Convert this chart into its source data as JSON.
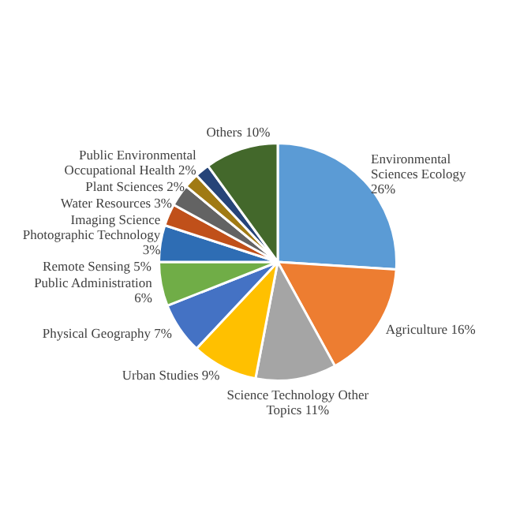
{
  "chart_data": {
    "type": "pie",
    "categories": [
      "Environmental Sciences Ecology",
      "Agriculture",
      "Science Technology Other Topics",
      "Urban Studies",
      "Physical Geography",
      "Public Administration",
      "Remote Sensing",
      "Imaging Science Photographic Technology",
      "Water Resources",
      "Plant Sciences",
      "Public Environmental Occupational Health",
      "Others"
    ],
    "values": [
      26,
      16,
      11,
      9,
      7,
      6,
      5,
      3,
      3,
      2,
      2,
      10
    ],
    "value_labels": [
      "26%",
      "16%",
      "11%",
      "9%",
      "7%",
      "6%",
      "5%",
      "3%",
      "3%",
      "2%",
      "2%",
      "10%"
    ],
    "colors": [
      "#5b9bd5",
      "#ed7d31",
      "#a5a5a5",
      "#ffc000",
      "#4472c4",
      "#70ad47",
      "#2e6db4",
      "#c0501a",
      "#636363",
      "#a07a14",
      "#264478",
      "#43682b"
    ]
  }
}
